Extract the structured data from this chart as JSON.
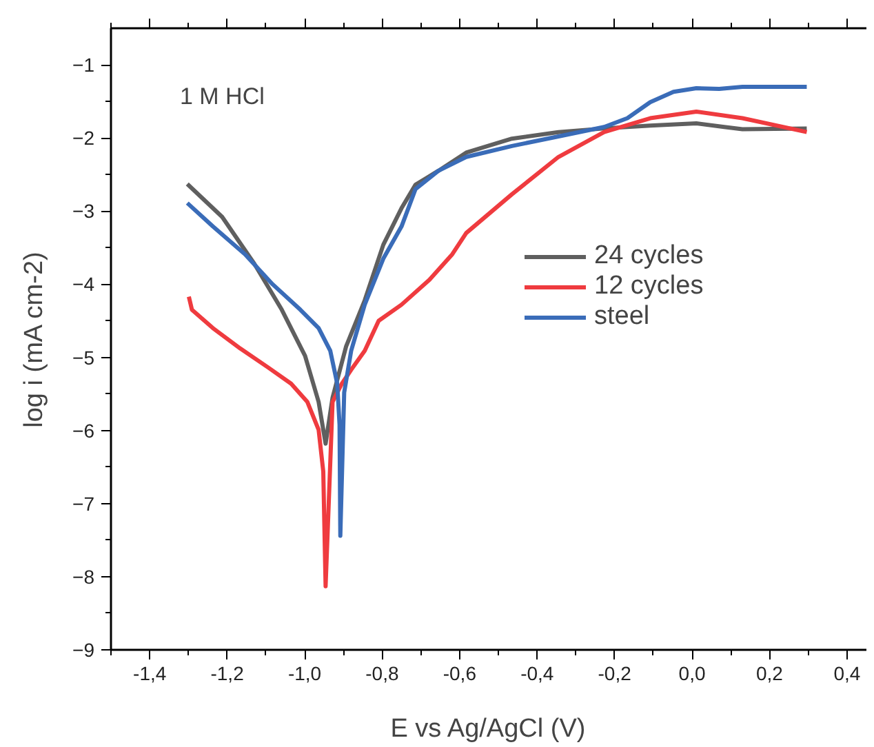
{
  "chart_data": {
    "type": "line",
    "xlabel": "E vs Ag/AgCl (V)",
    "ylabel": "log i (mA cm-2)",
    "annotations": [
      "1 M  HCl"
    ],
    "xlim": [
      -1.5,
      0.45
    ],
    "ylim": [
      -9,
      -0.5
    ],
    "xticks": [
      {
        "value": -1.4,
        "label": "-1,4"
      },
      {
        "value": -1.2,
        "label": "-1,2"
      },
      {
        "value": -1.0,
        "label": "-1,0"
      },
      {
        "value": -0.8,
        "label": "-0,8"
      },
      {
        "value": -0.6,
        "label": "-0,6"
      },
      {
        "value": -0.4,
        "label": "-0,4"
      },
      {
        "value": -0.2,
        "label": "-0,2"
      },
      {
        "value": 0.0,
        "label": "0,0"
      },
      {
        "value": 0.2,
        "label": "0,2"
      },
      {
        "value": 0.4,
        "label": "0,4"
      }
    ],
    "yticks": [
      -9,
      -8,
      -7,
      -6,
      -5,
      -4,
      -3,
      -2,
      -1
    ],
    "grid": false,
    "legend": "right",
    "line_style": "solid",
    "marker": "none",
    "series": [
      {
        "name": "24 cycles",
        "color": "#5f5f5f",
        "x": [
          -1.303,
          -1.213,
          -1.13,
          -1.059,
          -0.999,
          -0.964,
          -0.946,
          -0.928,
          -0.893,
          -0.845,
          -0.797,
          -0.75,
          -0.714,
          -0.655,
          -0.583,
          -0.465,
          -0.345,
          -0.227,
          -0.108,
          0.011,
          0.083,
          0.13,
          0.296
        ],
        "values": [
          -2.63,
          -3.08,
          -3.72,
          -4.35,
          -4.98,
          -5.61,
          -6.18,
          -5.55,
          -4.85,
          -4.22,
          -3.46,
          -2.96,
          -2.64,
          -2.45,
          -2.2,
          -2.01,
          -1.92,
          -1.87,
          -1.83,
          -1.8,
          -1.85,
          -1.88,
          -1.87
        ]
      },
      {
        "name": "12 cycles",
        "color": "#ef3b3f",
        "x": [
          -1.299,
          -1.291,
          -1.237,
          -1.166,
          -1.094,
          -1.035,
          -0.993,
          -0.964,
          -0.952,
          -0.946,
          -0.928,
          -0.904,
          -0.88,
          -0.845,
          -0.809,
          -0.75,
          -0.678,
          -0.619,
          -0.583,
          -0.465,
          -0.345,
          -0.227,
          -0.108,
          0.011,
          0.13,
          0.296
        ],
        "values": [
          -4.17,
          -4.35,
          -4.6,
          -4.88,
          -5.14,
          -5.36,
          -5.61,
          -5.99,
          -6.56,
          -8.13,
          -5.61,
          -5.36,
          -5.17,
          -4.91,
          -4.5,
          -4.28,
          -3.94,
          -3.59,
          -3.3,
          -2.77,
          -2.26,
          -1.92,
          -1.73,
          -1.64,
          -1.73,
          -1.92
        ]
      },
      {
        "name": "steel",
        "color": "#3a6cb8",
        "x": [
          -1.303,
          -1.237,
          -1.154,
          -1.083,
          -1.011,
          -0.964,
          -0.934,
          -0.916,
          -0.91,
          -0.908,
          -0.898,
          -0.88,
          -0.845,
          -0.797,
          -0.75,
          -0.714,
          -0.655,
          -0.583,
          -0.465,
          -0.345,
          -0.227,
          -0.167,
          -0.108,
          -0.048,
          0.011,
          0.07,
          0.13,
          0.296
        ],
        "values": [
          -2.89,
          -3.21,
          -3.59,
          -4.0,
          -4.35,
          -4.6,
          -4.91,
          -5.36,
          -5.92,
          -7.44,
          -5.48,
          -4.91,
          -4.28,
          -3.65,
          -3.21,
          -2.7,
          -2.45,
          -2.26,
          -2.11,
          -1.98,
          -1.85,
          -1.73,
          -1.51,
          -1.37,
          -1.32,
          -1.33,
          -1.3,
          -1.3
        ]
      }
    ]
  }
}
